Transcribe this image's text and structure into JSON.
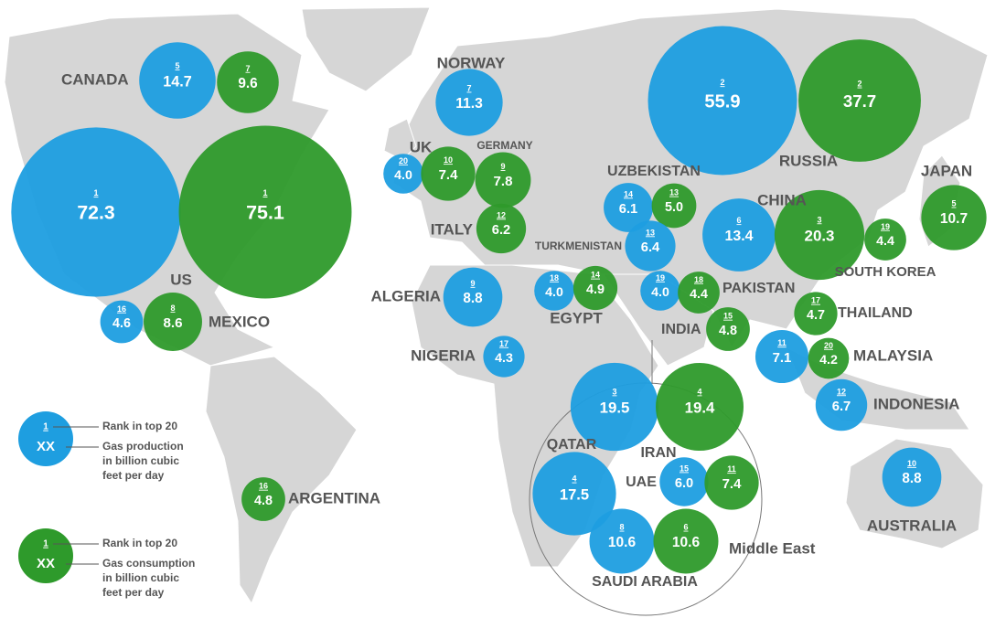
{
  "colors": {
    "production": "#1e9ee0",
    "consumption": "#2e9a2b"
  },
  "countries": [
    {
      "name": "CANADA",
      "production": {
        "rank": 5,
        "value": 14.7
      },
      "consumption": {
        "rank": 7,
        "value": 9.6
      }
    },
    {
      "name": "US",
      "production": {
        "rank": 1,
        "value": 72.3
      },
      "consumption": {
        "rank": 1,
        "value": 75.1
      }
    },
    {
      "name": "MEXICO",
      "production": {
        "rank": 16,
        "value": 4.6
      },
      "consumption": {
        "rank": 8,
        "value": 8.6
      }
    },
    {
      "name": "ARGENTINA",
      "consumption": {
        "rank": 16,
        "value": 4.8
      }
    },
    {
      "name": "NORWAY",
      "production": {
        "rank": 7,
        "value": 11.3
      }
    },
    {
      "name": "UK",
      "production": {
        "rank": 20,
        "value": 4,
        "value_label": "4.0"
      },
      "consumption": {
        "rank": 10,
        "value": 7.4
      }
    },
    {
      "name": "GERMANY",
      "consumption": {
        "rank": 9,
        "value": 7.8
      }
    },
    {
      "name": "ITALY",
      "consumption": {
        "rank": 12,
        "value": 6.2
      }
    },
    {
      "name": "ALGERIA",
      "production": {
        "rank": 9,
        "value": 8.8
      }
    },
    {
      "name": "NIGERIA",
      "production": {
        "rank": 17,
        "value": 4.3
      }
    },
    {
      "name": "EGYPT",
      "production": {
        "rank": 18,
        "value": 4,
        "value_label": "4.0"
      },
      "consumption": {
        "rank": 14,
        "value": 4.9
      }
    },
    {
      "name": "UZBEKISTAN",
      "production": {
        "rank": 14,
        "value": 6.1
      },
      "consumption": {
        "rank": 13,
        "value": 5,
        "value_label": "5.0"
      }
    },
    {
      "name": "TURKMENISTAN",
      "production": {
        "rank": 13,
        "value": 6.4
      }
    },
    {
      "name": "RUSSIA",
      "production": {
        "rank": 2,
        "value": 55.9
      },
      "consumption": {
        "rank": 2,
        "value": 37.7
      }
    },
    {
      "name": "CHINA",
      "production": {
        "rank": 6,
        "value": 13.4
      },
      "consumption": {
        "rank": 3,
        "value": 20.3
      }
    },
    {
      "name": "JAPAN",
      "consumption": {
        "rank": 5,
        "value": 10.7
      }
    },
    {
      "name": "SOUTH KOREA",
      "consumption": {
        "rank": 19,
        "value": 4.4
      }
    },
    {
      "name": "PAKISTAN",
      "production": {
        "rank": 19,
        "value": 4,
        "value_label": "4.0"
      },
      "consumption": {
        "rank": 18,
        "value": 4.4
      }
    },
    {
      "name": "INDIA",
      "consumption": {
        "rank": 15,
        "value": 4.8
      }
    },
    {
      "name": "THAILAND",
      "consumption": {
        "rank": 17,
        "value": 4.7
      }
    },
    {
      "name": "MALAYSIA",
      "production": {
        "rank": 11,
        "value": 7.1
      },
      "consumption": {
        "rank": 20,
        "value": 4.2
      }
    },
    {
      "name": "INDONESIA",
      "production": {
        "rank": 12,
        "value": 6.7
      }
    },
    {
      "name": "IRAN",
      "production": {
        "rank": 3,
        "value": 19.5
      },
      "consumption": {
        "rank": 4,
        "value": 19.4
      }
    },
    {
      "name": "QATAR",
      "production": {
        "rank": 4,
        "value": 17.5
      }
    },
    {
      "name": "UAE",
      "production": {
        "rank": 15,
        "value": 6,
        "value_label": "6.0"
      },
      "consumption": {
        "rank": 11,
        "value": 7.4
      }
    },
    {
      "name": "SAUDI ARABIA",
      "production": {
        "rank": 8,
        "value": 10.6
      },
      "consumption": {
        "rank": 6,
        "value": 10.6
      }
    },
    {
      "name": "AUSTRALIA",
      "production": {
        "rank": 10,
        "value": 8.8
      }
    }
  ],
  "region_label": "Middle East",
  "legend": [
    {
      "rank": 1,
      "symbol": "XX",
      "rank_note": "Rank in top 20",
      "note": [
        "Gas production",
        "in billion cubic",
        "feet per day"
      ]
    },
    {
      "rank": 1,
      "symbol": "XX",
      "rank_note": "Rank in top 20",
      "note": [
        "Gas consumption",
        "in billion cubic",
        "feet per day"
      ]
    }
  ]
}
